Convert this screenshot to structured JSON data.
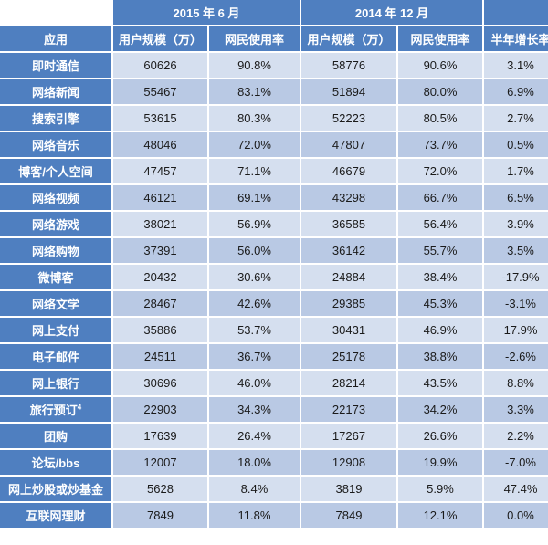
{
  "chart_data": {
    "type": "table",
    "period_headers": [
      "2015 年 6 月",
      "2014 年 12 月",
      ""
    ],
    "column_headers": [
      "应用",
      "用户规模（万）",
      "网民使用率",
      "用户规模（万）",
      "网民使用率",
      "半年增长率"
    ],
    "rows": [
      {
        "app": "即时通信",
        "sup": "",
        "users_2015": "60626",
        "rate_2015": "90.8%",
        "users_2014": "58776",
        "rate_2014": "90.6%",
        "growth": "3.1%"
      },
      {
        "app": "网络新闻",
        "sup": "",
        "users_2015": "55467",
        "rate_2015": "83.1%",
        "users_2014": "51894",
        "rate_2014": "80.0%",
        "growth": "6.9%"
      },
      {
        "app": "搜索引擎",
        "sup": "",
        "users_2015": "53615",
        "rate_2015": "80.3%",
        "users_2014": "52223",
        "rate_2014": "80.5%",
        "growth": "2.7%"
      },
      {
        "app": "网络音乐",
        "sup": "",
        "users_2015": "48046",
        "rate_2015": "72.0%",
        "users_2014": "47807",
        "rate_2014": "73.7%",
        "growth": "0.5%"
      },
      {
        "app": "博客/个人空间",
        "sup": "",
        "users_2015": "47457",
        "rate_2015": "71.1%",
        "users_2014": "46679",
        "rate_2014": "72.0%",
        "growth": "1.7%"
      },
      {
        "app": "网络视频",
        "sup": "",
        "users_2015": "46121",
        "rate_2015": "69.1%",
        "users_2014": "43298",
        "rate_2014": "66.7%",
        "growth": "6.5%"
      },
      {
        "app": "网络游戏",
        "sup": "",
        "users_2015": "38021",
        "rate_2015": "56.9%",
        "users_2014": "36585",
        "rate_2014": "56.4%",
        "growth": "3.9%"
      },
      {
        "app": "网络购物",
        "sup": "",
        "users_2015": "37391",
        "rate_2015": "56.0%",
        "users_2014": "36142",
        "rate_2014": "55.7%",
        "growth": "3.5%"
      },
      {
        "app": "微博客",
        "sup": "",
        "users_2015": "20432",
        "rate_2015": "30.6%",
        "users_2014": "24884",
        "rate_2014": "38.4%",
        "growth": "-17.9%"
      },
      {
        "app": "网络文学",
        "sup": "",
        "users_2015": "28467",
        "rate_2015": "42.6%",
        "users_2014": "29385",
        "rate_2014": "45.3%",
        "growth": "-3.1%"
      },
      {
        "app": "网上支付",
        "sup": "",
        "users_2015": "35886",
        "rate_2015": "53.7%",
        "users_2014": "30431",
        "rate_2014": "46.9%",
        "growth": "17.9%"
      },
      {
        "app": "电子邮件",
        "sup": "",
        "users_2015": "24511",
        "rate_2015": "36.7%",
        "users_2014": "25178",
        "rate_2014": "38.8%",
        "growth": "-2.6%"
      },
      {
        "app": "网上银行",
        "sup": "",
        "users_2015": "30696",
        "rate_2015": "46.0%",
        "users_2014": "28214",
        "rate_2014": "43.5%",
        "growth": "8.8%"
      },
      {
        "app": "旅行预订",
        "sup": "4",
        "users_2015": "22903",
        "rate_2015": "34.3%",
        "users_2014": "22173",
        "rate_2014": "34.2%",
        "growth": "3.3%"
      },
      {
        "app": "团购",
        "sup": "",
        "users_2015": "17639",
        "rate_2015": "26.4%",
        "users_2014": "17267",
        "rate_2014": "26.6%",
        "growth": "2.2%"
      },
      {
        "app": "论坛/bbs",
        "sup": "",
        "users_2015": "12007",
        "rate_2015": "18.0%",
        "users_2014": "12908",
        "rate_2014": "19.9%",
        "growth": "-7.0%"
      },
      {
        "app": "网上炒股或炒基金",
        "sup": "",
        "users_2015": "5628",
        "rate_2015": "8.4%",
        "users_2014": "3819",
        "rate_2014": "5.9%",
        "growth": "47.4%"
      },
      {
        "app": "互联网理财",
        "sup": "",
        "users_2015": "7849",
        "rate_2015": "11.8%",
        "users_2014": "7849",
        "rate_2014": "12.1%",
        "growth": "0.0%"
      }
    ]
  }
}
